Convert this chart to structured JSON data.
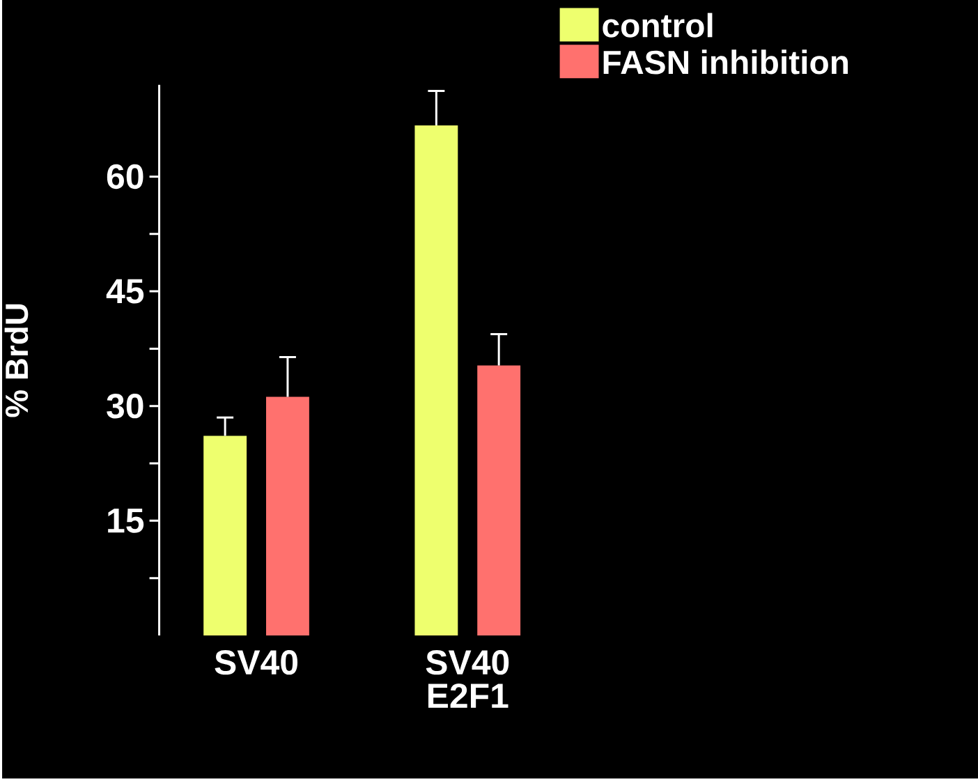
{
  "chart_data": {
    "type": "bar",
    "ylabel": "% BrdU",
    "categories": [
      "SV40",
      "SV40 E2F1"
    ],
    "series": [
      {
        "name": "control",
        "color": "#eeff6e",
        "values": [
          26.1,
          66.7
        ],
        "errors": [
          [
            26.1,
            28.5
          ],
          [
            66.7,
            71.2
          ]
        ]
      },
      {
        "name": "FASN inhibition",
        "color": "#ff716e",
        "values": [
          31.2,
          35.3
        ],
        "errors": [
          [
            31.2,
            36.4
          ],
          [
            35.3,
            39.4
          ]
        ]
      }
    ],
    "ylim": [
      0,
      72
    ],
    "yticks": [
      {
        "value": 7.5,
        "label": null
      },
      15,
      {
        "value": 22.5,
        "label": null
      },
      30,
      {
        "value": 37.5,
        "label": null
      },
      45,
      {
        "value": 52.5,
        "label": null
      },
      60
    ],
    "legend": "top right"
  }
}
